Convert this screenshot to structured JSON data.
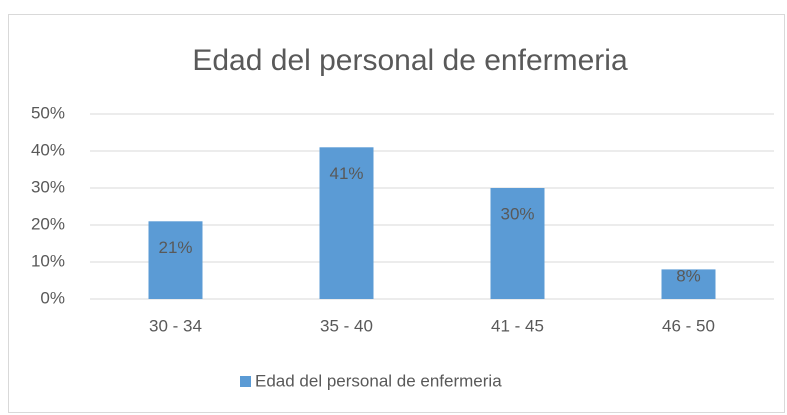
{
  "chart_data": {
    "type": "bar",
    "title": "Edad del personal de enfermeria",
    "categories": [
      "30 - 34",
      "35 - 40",
      "41 - 45",
      "46 - 50"
    ],
    "series": [
      {
        "name": "Edad del personal de enfermeria",
        "color": "#5b9bd5",
        "values": [
          21,
          41,
          30,
          8
        ],
        "value_labels": [
          "21%",
          "41%",
          "30%",
          "8%"
        ]
      }
    ],
    "ylim": [
      0,
      50
    ],
    "yticks": [
      {
        "value": 0,
        "label": "0%"
      },
      {
        "value": 10,
        "label": "10%"
      },
      {
        "value": 20,
        "label": "20%"
      },
      {
        "value": 30,
        "label": "30%"
      },
      {
        "value": 40,
        "label": "40%"
      },
      {
        "value": 50,
        "label": "50%"
      }
    ],
    "grid": true,
    "legend": "bottom"
  }
}
